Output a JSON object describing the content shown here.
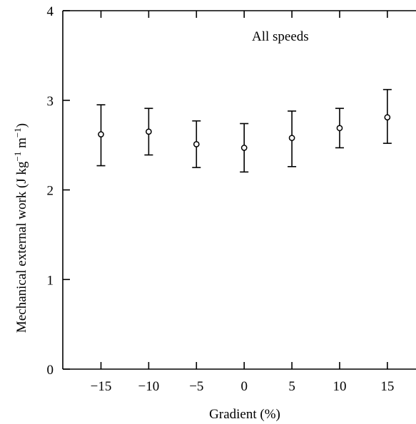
{
  "chart_data": {
    "type": "scatter",
    "title": "",
    "annotation": "All speeds",
    "xlabel": "Gradient (%)",
    "ylabel_main": "Mechanical external work (J kg",
    "ylabel_sup1": "−1",
    "ylabel_mid": " m",
    "ylabel_sup2": "−1",
    "ylabel_end": ")",
    "xlim": [
      -19,
      18
    ],
    "ylim": [
      0,
      4
    ],
    "xticks": [
      -15,
      -10,
      -5,
      0,
      5,
      10,
      15
    ],
    "xtick_labels": [
      "−15",
      "−10",
      "−5",
      "0",
      "5",
      "10",
      "15"
    ],
    "yticks": [
      0,
      1,
      2,
      3,
      4
    ],
    "ytick_labels": [
      "0",
      "1",
      "2",
      "3",
      "4"
    ],
    "grid": false,
    "points": [
      {
        "x": -15,
        "y": 2.62,
        "err_low": 2.27,
        "err_high": 2.95
      },
      {
        "x": -10,
        "y": 2.65,
        "err_low": 2.39,
        "err_high": 2.91
      },
      {
        "x": -5,
        "y": 2.51,
        "err_low": 2.25,
        "err_high": 2.77
      },
      {
        "x": 0,
        "y": 2.47,
        "err_low": 2.2,
        "err_high": 2.74
      },
      {
        "x": 5,
        "y": 2.58,
        "err_low": 2.26,
        "err_high": 2.88
      },
      {
        "x": 10,
        "y": 2.69,
        "err_low": 2.47,
        "err_high": 2.91
      },
      {
        "x": 15,
        "y": 2.81,
        "err_low": 2.52,
        "err_high": 3.12
      }
    ]
  }
}
